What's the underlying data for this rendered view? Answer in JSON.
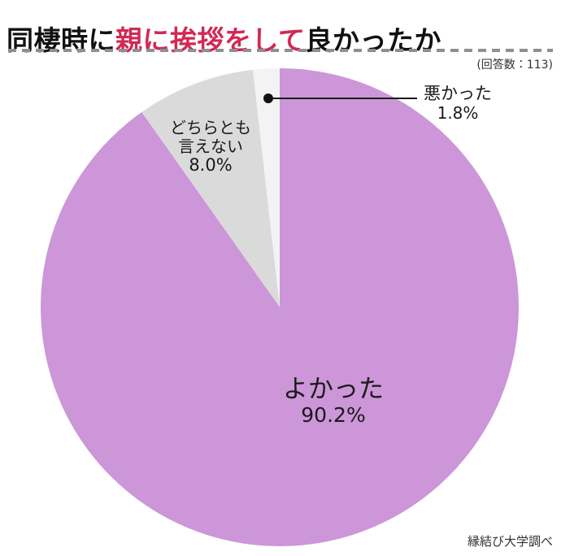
{
  "header": {
    "title_pre": "同棲時に",
    "title_highlight": "親に挨拶をして",
    "title_post": "良かったか",
    "respondents": "(回答数：113)"
  },
  "chart_data": {
    "type": "pie",
    "title": "同棲時に親に挨拶をして良かったか",
    "labels": [
      "よかった",
      "どちらとも言えない",
      "悪かった"
    ],
    "values": [
      90.2,
      8.0,
      1.8
    ],
    "unit": "%",
    "colors": [
      "#cc96d8",
      "#dadada",
      "#f3f3f3"
    ],
    "start_angle_deg": 0,
    "direction": "clockwise",
    "legend_position": "none",
    "labels_on_chart": true,
    "sample_size": 113,
    "source": "縁結び大学調べ"
  },
  "slices": {
    "yokatta": {
      "label": "よかった",
      "pct": "90.2%"
    },
    "dochira": {
      "label_line1": "どちらとも",
      "label_line2": "言えない",
      "pct": "8.0%"
    },
    "warukatta": {
      "label": "悪かった",
      "pct": "1.8%"
    }
  },
  "footer": {
    "source": "縁結び大学調べ"
  },
  "colors": {
    "title_highlight": "#d02a54",
    "slice_yokatta": "#cc96d8",
    "slice_dochira": "#dadada",
    "slice_warukatta": "#f3f3f3",
    "divider_dash": "#8f8f8f",
    "leader": "#111111"
  }
}
